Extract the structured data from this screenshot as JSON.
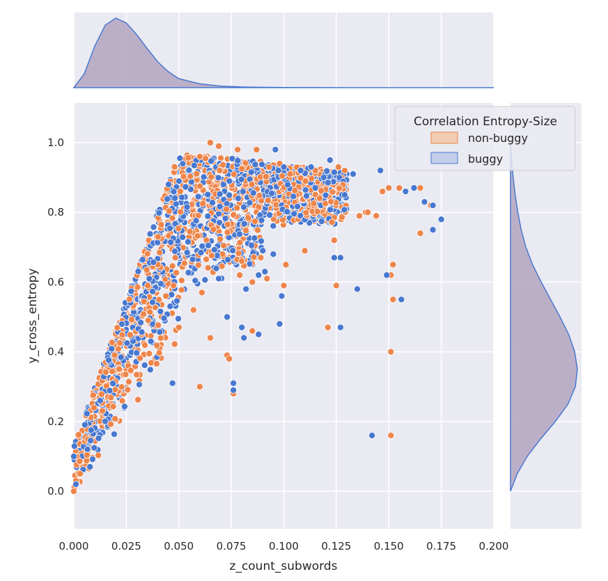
{
  "chart_data": {
    "type": "scatter",
    "title": "",
    "xlabel": "z_count_subwords",
    "ylabel": "y_cross_entropy",
    "xlim": [
      0.0,
      0.2
    ],
    "ylim": [
      -0.11,
      1.11
    ],
    "xticks": [
      "0.000",
      "0.025",
      "0.050",
      "0.075",
      "0.100",
      "0.125",
      "0.150",
      "0.175",
      "0.200"
    ],
    "yticks": [
      "0.0",
      "0.2",
      "0.4",
      "0.6",
      "0.8",
      "1.0"
    ],
    "grid": true,
    "legend": {
      "title": "Correlation Entropy-Size",
      "placement": "top-right",
      "entries": [
        "non-buggy",
        "buggy"
      ]
    },
    "colors": {
      "non_buggy": "#ee854a",
      "buggy": "#4878d0",
      "background": "#eaeaf2",
      "marginal_fill": "#b3a4bf",
      "marginal_line": "#4878d0"
    },
    "series": [
      {
        "name": "non-buggy",
        "outliers": [
          [
            0.065,
            1.0
          ],
          [
            0.069,
            0.99
          ],
          [
            0.078,
            0.98
          ],
          [
            0.087,
            0.98
          ],
          [
            0.093,
            0.93
          ],
          [
            0.098,
            0.94
          ],
          [
            0.103,
            0.91
          ],
          [
            0.115,
            0.92
          ],
          [
            0.126,
            0.93
          ],
          [
            0.129,
            0.92
          ],
          [
            0.136,
            0.79
          ],
          [
            0.139,
            0.8
          ],
          [
            0.144,
            0.79
          ],
          [
            0.147,
            0.86
          ],
          [
            0.15,
            0.87
          ],
          [
            0.155,
            0.87
          ],
          [
            0.165,
            0.87
          ],
          [
            0.17,
            0.82
          ],
          [
            0.165,
            0.74
          ],
          [
            0.151,
            0.62
          ],
          [
            0.152,
            0.55
          ],
          [
            0.151,
            0.4
          ],
          [
            0.151,
            0.16
          ],
          [
            0.124,
            0.72
          ],
          [
            0.125,
            0.59
          ],
          [
            0.121,
            0.47
          ],
          [
            0.098,
            0.48
          ],
          [
            0.1,
            0.59
          ],
          [
            0.092,
            0.61
          ],
          [
            0.085,
            0.6
          ],
          [
            0.082,
            0.58
          ],
          [
            0.079,
            0.62
          ],
          [
            0.073,
            0.39
          ],
          [
            0.074,
            0.38
          ],
          [
            0.076,
            0.28
          ],
          [
            0.065,
            0.44
          ],
          [
            0.06,
            0.3
          ],
          [
            0.061,
            0.57
          ],
          [
            0.057,
            0.52
          ],
          [
            0.05,
            0.47
          ],
          [
            0.101,
            0.65
          ],
          [
            0.11,
            0.69
          ],
          [
            0.08,
            0.66
          ],
          [
            0.085,
            0.46
          ],
          [
            0.152,
            0.65
          ],
          [
            0.14,
            0.8
          ],
          [
            0.0,
            0.0
          ],
          [
            0.001,
            0.03
          ],
          [
            0.003,
            0.05
          ],
          [
            0.06,
            0.96
          ]
        ]
      },
      {
        "name": "buggy",
        "outliers": [
          [
            0.096,
            0.98
          ],
          [
            0.1,
            0.93
          ],
          [
            0.122,
            0.95
          ],
          [
            0.133,
            0.91
          ],
          [
            0.146,
            0.92
          ],
          [
            0.162,
            0.87
          ],
          [
            0.167,
            0.83
          ],
          [
            0.171,
            0.82
          ],
          [
            0.175,
            0.78
          ],
          [
            0.171,
            0.75
          ],
          [
            0.156,
            0.55
          ],
          [
            0.149,
            0.62
          ],
          [
            0.142,
            0.16
          ],
          [
            0.135,
            0.58
          ],
          [
            0.127,
            0.47
          ],
          [
            0.124,
            0.67
          ],
          [
            0.127,
            0.67
          ],
          [
            0.113,
            0.93
          ],
          [
            0.108,
            0.92
          ],
          [
            0.098,
            0.48
          ],
          [
            0.099,
            0.56
          ],
          [
            0.09,
            0.69
          ],
          [
            0.088,
            0.62
          ],
          [
            0.082,
            0.58
          ],
          [
            0.08,
            0.47
          ],
          [
            0.081,
            0.44
          ],
          [
            0.076,
            0.31
          ],
          [
            0.076,
            0.29
          ],
          [
            0.073,
            0.5
          ],
          [
            0.069,
            0.61
          ],
          [
            0.091,
            0.63
          ],
          [
            0.095,
            0.68
          ],
          [
            0.119,
            0.9
          ],
          [
            0.129,
            0.85
          ],
          [
            0.088,
            0.45
          ],
          [
            0.115,
            0.87
          ],
          [
            0.158,
            0.86
          ],
          [
            0.047,
            0.31
          ],
          [
            0.001,
            0.02
          ],
          [
            0.0,
            0.1
          ]
        ]
      }
    ],
    "marginal_x_density": {
      "x": [
        0.0,
        0.005,
        0.01,
        0.015,
        0.02,
        0.025,
        0.03,
        0.035,
        0.04,
        0.045,
        0.05,
        0.06,
        0.07,
        0.08,
        0.09,
        0.1,
        0.12,
        0.15,
        0.2
      ],
      "density": [
        0.0,
        0.2,
        0.6,
        0.9,
        1.0,
        0.93,
        0.76,
        0.56,
        0.37,
        0.23,
        0.13,
        0.055,
        0.023,
        0.01,
        0.005,
        0.003,
        0.001,
        0.0,
        0.0
      ]
    },
    "marginal_y_density": {
      "y": [
        0.0,
        0.05,
        0.1,
        0.15,
        0.2,
        0.25,
        0.3,
        0.35,
        0.4,
        0.45,
        0.5,
        0.55,
        0.6,
        0.65,
        0.7,
        0.75,
        0.8,
        0.85,
        0.9,
        0.95,
        1.0
      ],
      "density": [
        0.0,
        0.1,
        0.25,
        0.45,
        0.67,
        0.86,
        0.97,
        1.0,
        0.96,
        0.87,
        0.74,
        0.6,
        0.46,
        0.33,
        0.23,
        0.16,
        0.11,
        0.07,
        0.04,
        0.015,
        0.0
      ]
    }
  }
}
